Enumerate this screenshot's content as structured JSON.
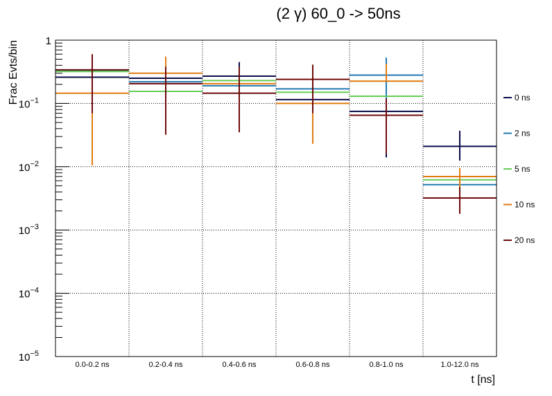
{
  "chart_data": {
    "type": "step-errorbar",
    "title": "(2 γ) 60_0 -> 50ns",
    "xlabel": "t [ns]",
    "ylabel": "Frac Evts/bin",
    "yscale": "log",
    "ylim": [
      1e-05,
      1
    ],
    "y_ticks": [
      {
        "base": "1",
        "exp": ""
      },
      {
        "base": "10",
        "exp": "−1"
      },
      {
        "base": "10",
        "exp": "−2"
      },
      {
        "base": "10",
        "exp": "−3"
      },
      {
        "base": "10",
        "exp": "−4"
      },
      {
        "base": "10",
        "exp": "−5"
      }
    ],
    "grid": true,
    "legend_position": "right",
    "categories": [
      "0.0-0.2 ns",
      "0.2-0.4 ns",
      "0.4-0.6 ns",
      "0.6-0.8 ns",
      "0.8-1.0 ns",
      "1.0-12.0 ns"
    ],
    "series": [
      {
        "name": "0 ns",
        "color": "#0a0a4a",
        "values": [
          0.26,
          0.25,
          0.27,
          0.115,
          0.075,
          0.021
        ],
        "err_low": [
          null,
          null,
          null,
          null,
          0.014,
          0.0125
        ],
        "err_high": [
          null,
          null,
          0.45,
          null,
          null,
          0.037
        ]
      },
      {
        "name": "2 ns",
        "color": "#1f78b4",
        "values": [
          0.33,
          0.22,
          0.19,
          0.17,
          0.28,
          0.0052
        ],
        "err_low": [
          null,
          null,
          null,
          null,
          0.05,
          null
        ],
        "err_high": [
          null,
          null,
          null,
          null,
          0.53,
          null
        ]
      },
      {
        "name": "5 ns",
        "color": "#66cc55",
        "values": [
          0.32,
          0.155,
          0.23,
          0.15,
          0.13,
          0.0062
        ],
        "err_low": [
          null,
          null,
          null,
          null,
          null,
          null
        ],
        "err_high": [
          null,
          null,
          null,
          null,
          null,
          null
        ]
      },
      {
        "name": "10 ns",
        "color": "#e07a10",
        "values": [
          0.145,
          0.3,
          0.205,
          0.1,
          0.225,
          0.007
        ],
        "err_low": [
          0.0105,
          0.065,
          null,
          0.023,
          null,
          0.0045
        ],
        "err_high": [
          0.5,
          0.55,
          0.37,
          null,
          0.42,
          0.0095
        ]
      },
      {
        "name": "20 ns",
        "color": "#6e0a0a",
        "values": [
          0.34,
          0.205,
          0.145,
          0.24,
          0.065,
          0.0032
        ],
        "err_low": [
          0.07,
          0.032,
          0.035,
          0.07,
          0.016,
          0.0018
        ],
        "err_high": [
          0.6,
          0.38,
          0.38,
          0.41,
          0.12,
          0.0048
        ]
      }
    ]
  }
}
